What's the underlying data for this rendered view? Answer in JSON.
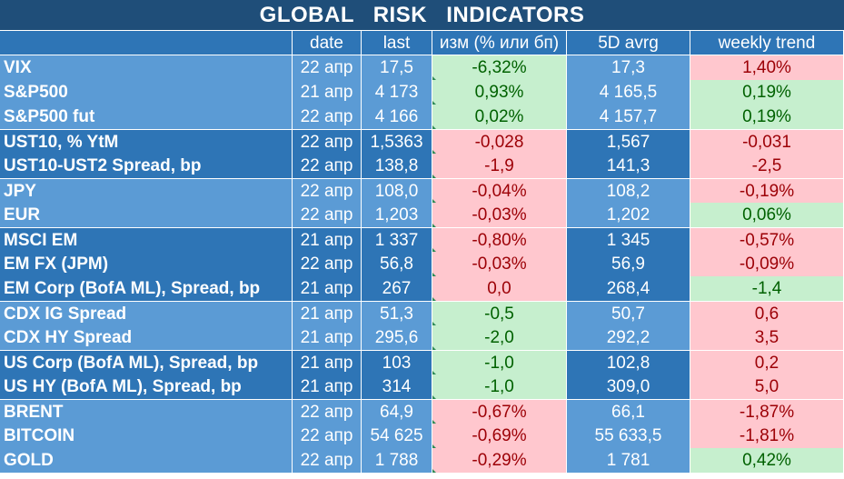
{
  "title": "GLOBAL   RISK   INDICATORS",
  "headers": {
    "name": "",
    "date": "date",
    "last": "last",
    "change": "изм (% или бп)",
    "avg5d": "5D avrg",
    "trend": "weekly trend"
  },
  "colors": {
    "title_bg": "#1f4e79",
    "row_light": "#5b9bd5",
    "row_dark": "#2e75b6",
    "positive_bg": "#c6efce",
    "positive_fg": "#006100",
    "negative_bg": "#ffc7ce",
    "negative_fg": "#9c0006"
  },
  "rows": [
    {
      "name": "VIX",
      "date": "22 апр",
      "last": "17,5",
      "change": "-6,32%",
      "change_status": "pos",
      "avg5d": "17,3",
      "trend": "1,40%",
      "trend_status": "neg"
    },
    {
      "name": "S&P500",
      "date": "21 апр",
      "last": "4 173",
      "change": "0,93%",
      "change_status": "pos",
      "avg5d": "4 165,5",
      "trend": "0,19%",
      "trend_status": "pos"
    },
    {
      "name": "S&P500 fut",
      "date": "22 апр",
      "last": "4 166",
      "change": "0,02%",
      "change_status": "pos",
      "avg5d": "4 157,7",
      "trend": "0,19%",
      "trend_status": "pos"
    },
    {
      "name": "UST10, % YtM",
      "date": "22 апр",
      "last": "1,5363",
      "change": "-0,028",
      "change_status": "neg",
      "avg5d": "1,567",
      "trend": "-0,031",
      "trend_status": "neg"
    },
    {
      "name": "UST10-UST2 Spread, bp",
      "date": "22 апр",
      "last": "138,8",
      "change": "-1,9",
      "change_status": "neg",
      "avg5d": "141,3",
      "trend": "-2,5",
      "trend_status": "neg"
    },
    {
      "name": "JPY",
      "date": "22 апр",
      "last": "108,0",
      "change": "-0,04%",
      "change_status": "neg",
      "avg5d": "108,2",
      "trend": "-0,19%",
      "trend_status": "neg"
    },
    {
      "name": "EUR",
      "date": "22 апр",
      "last": "1,203",
      "change": "-0,03%",
      "change_status": "neg",
      "avg5d": "1,202",
      "trend": "0,06%",
      "trend_status": "pos"
    },
    {
      "name": "MSCI EM",
      "date": "21 апр",
      "last": "1 337",
      "change": "-0,80%",
      "change_status": "neg",
      "avg5d": "1 345",
      "trend": "-0,57%",
      "trend_status": "neg"
    },
    {
      "name": "EM FX (JPM)",
      "date": "22 апр",
      "last": "56,8",
      "change": "-0,03%",
      "change_status": "neg",
      "avg5d": "56,9",
      "trend": "-0,09%",
      "trend_status": "neg"
    },
    {
      "name": "EM Corp (BofA ML), Spread, bp",
      "date": "21 апр",
      "last": "267",
      "change": "0,0",
      "change_status": "neg",
      "avg5d": "268,4",
      "trend": "-1,4",
      "trend_status": "pos"
    },
    {
      "name": "CDX IG Spread",
      "date": "21 апр",
      "last": "51,3",
      "change": "-0,5",
      "change_status": "pos",
      "avg5d": "50,7",
      "trend": "0,6",
      "trend_status": "neg"
    },
    {
      "name": "CDX HY Spread",
      "date": "21 апр",
      "last": "295,6",
      "change": "-2,0",
      "change_status": "pos",
      "avg5d": "292,2",
      "trend": "3,5",
      "trend_status": "neg"
    },
    {
      "name": "US Corp (BofA ML), Spread, bp",
      "date": "21 апр",
      "last": "103",
      "change": "-1,0",
      "change_status": "pos",
      "avg5d": "102,8",
      "trend": "0,2",
      "trend_status": "neg"
    },
    {
      "name": "US HY (BofA ML), Spread, bp",
      "date": "21 апр",
      "last": "314",
      "change": "-1,0",
      "change_status": "pos",
      "avg5d": "309,0",
      "trend": "5,0",
      "trend_status": "neg"
    },
    {
      "name": "BRENT",
      "date": "22 апр",
      "last": "64,9",
      "change": "-0,67%",
      "change_status": "neg",
      "avg5d": "66,1",
      "trend": "-1,87%",
      "trend_status": "neg"
    },
    {
      "name": "BITCOIN",
      "date": "22 апр",
      "last": "54 625",
      "change": "-0,69%",
      "change_status": "neg",
      "avg5d": "55 633,5",
      "trend": "-1,81%",
      "trend_status": "neg"
    },
    {
      "name": "GOLD",
      "date": "22 апр",
      "last": "1 788",
      "change": "-0,29%",
      "change_status": "neg",
      "avg5d": "1 781",
      "trend": "0,42%",
      "trend_status": "pos"
    }
  ]
}
